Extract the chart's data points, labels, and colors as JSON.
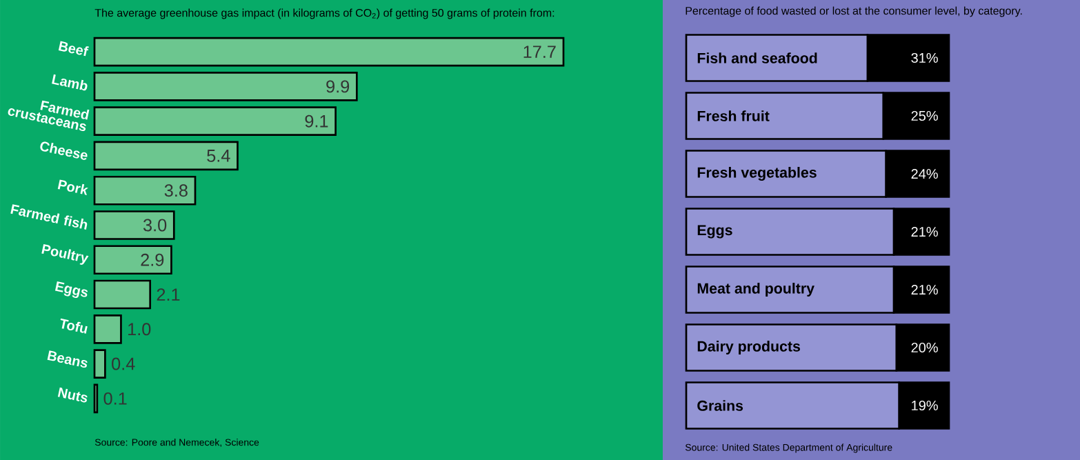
{
  "chart_data": [
    {
      "type": "bar",
      "orientation": "horizontal",
      "title": "The average greenhouse gas impact (in kilograms of CO$_{2}$) of getting 50 grams of protein from:",
      "categories": [
        "Beef",
        "Lamb",
        "Farmed crustaceans",
        "Cheese",
        "Pork",
        "Farmed fish",
        "Poultry",
        "Eggs",
        "Tofu",
        "Beans",
        "Nuts"
      ],
      "values": [
        17.7,
        9.9,
        9.1,
        5.4,
        3.8,
        3.0,
        2.9,
        2.1,
        1.0,
        0.4,
        0.1
      ],
      "color": "#6cc68f",
      "value_labels": [
        "17.7",
        "9.9",
        "9.1",
        "5.4",
        "3.8",
        "3.0",
        "2.9",
        "2.1",
        "1.0",
        "0.4",
        "0.1"
      ],
      "annotations": [
        "Source: Poore and Nemecek, Science"
      ]
    },
    {
      "type": "bar",
      "orientation": "horizontal",
      "stacked": true,
      "title": "Percentage of food wasted or lost at the consumer level, by category.",
      "categories": [
        "Fish and seafood",
        "Fresh fruit",
        "Fresh vegetables",
        "Eggs",
        "Meat and poultry",
        "Dairy products",
        "Grains"
      ],
      "series": [
        {
          "color": "#9495d4",
          "values": [
            69,
            75,
            76,
            79,
            79,
            80,
            81
          ]
        },
        {
          "color": "#000000",
          "values": [
            31,
            25,
            24,
            21,
            21,
            20,
            19
          ],
          "value_labels": [
            "31%",
            "25%",
            "24%",
            "21%",
            "21%",
            "20%",
            "19%"
          ]
        }
      ],
      "annotations": [
        "Source: United States Department of Agriculture"
      ]
    }
  ]
}
